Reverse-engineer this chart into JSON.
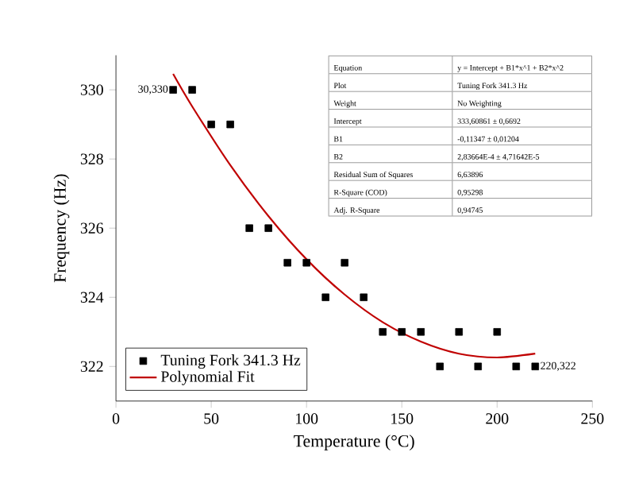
{
  "chart_data": {
    "type": "scatter",
    "xlabel": "Temperature (°C)",
    "ylabel": "Frequency (Hz)",
    "xlim": [
      0,
      250
    ],
    "xticks": [
      0,
      50,
      100,
      150,
      200,
      250
    ],
    "ylim": [
      321,
      331
    ],
    "yticks": [
      322,
      324,
      326,
      328,
      330
    ],
    "legend": "bottom left",
    "series": [
      {
        "name": "Tuning Fork 341.3 Hz",
        "marker": "square",
        "color": "#000000",
        "x": [
          30,
          40,
          50,
          60,
          70,
          80,
          90,
          100,
          110,
          120,
          130,
          140,
          150,
          160,
          170,
          180,
          190,
          200,
          210,
          220
        ],
        "values": [
          330,
          330,
          329,
          329,
          326,
          326,
          325,
          325,
          324,
          325,
          324,
          323,
          323,
          323,
          322,
          323,
          322,
          323,
          322,
          322
        ]
      },
      {
        "name": "Polynomial Fit",
        "type": "line",
        "color": "#c00000",
        "x": [
          30,
          40,
          60,
          80,
          100,
          120,
          140,
          160,
          180,
          200,
          220
        ],
        "values": [
          330.46,
          329.52,
          327.82,
          326.35,
          325.1,
          324.08,
          323.28,
          322.72,
          322.37,
          322.26,
          322.37
        ]
      }
    ],
    "annotations": [
      {
        "text": "30,330",
        "x": 30,
        "y": 330
      },
      {
        "text": "220,322",
        "x": 220,
        "y": 322
      },
      "Equation",
      "y = Intercept + B1*x^1 + B2*x^2",
      "Plot",
      "Tuning Fork 341.3 Hz",
      "Weight",
      "No Weighting",
      "Intercept",
      "333,60861 ± 0,6692",
      "B1",
      "-0,11347 ± 0,01204",
      "B2",
      "2,83664E-4 ± 4,71642E-5",
      "Residual Sum of Squares",
      "6,63896",
      "R-Square (COD)",
      "0,95298",
      "Adj. R-Square",
      "0,94745"
    ]
  }
}
